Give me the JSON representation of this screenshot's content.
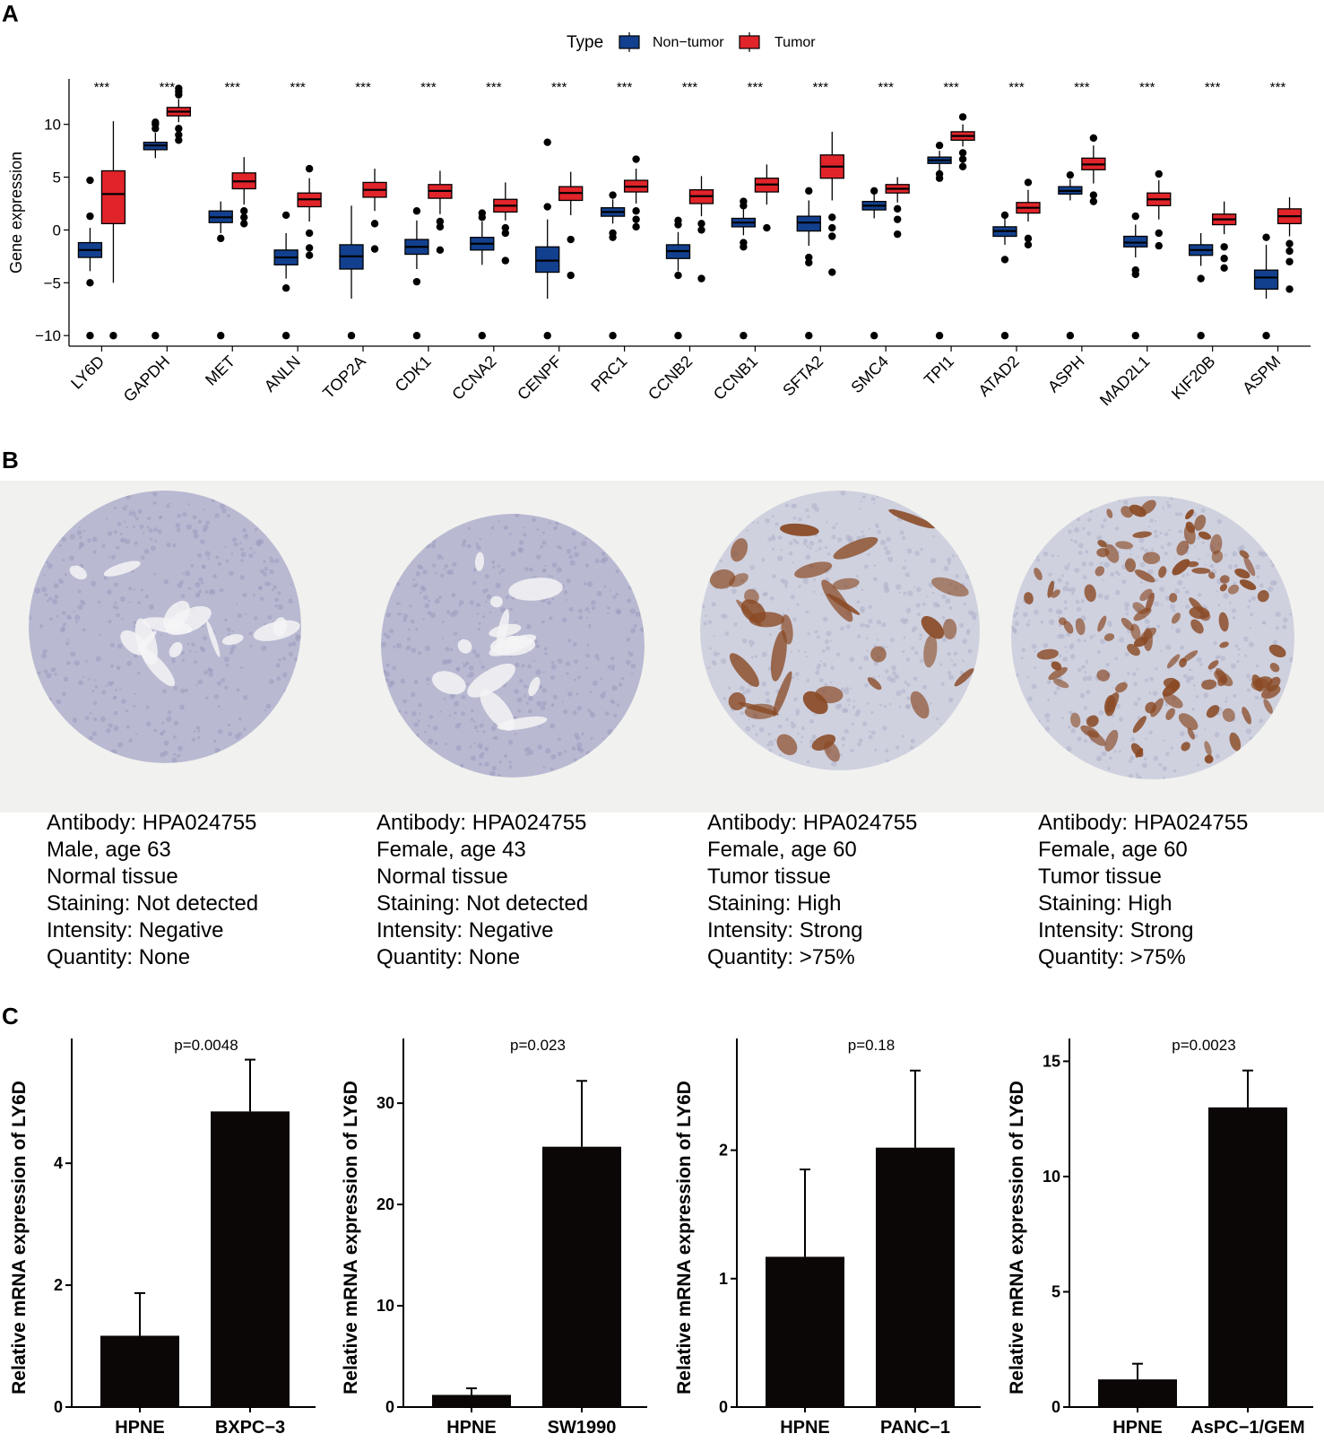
{
  "panels": {
    "a_label": "A",
    "b_label": "B",
    "c_label": "C"
  },
  "legend": {
    "title": "Type",
    "items": [
      {
        "label": "Non−tumor",
        "color": "#12408e"
      },
      {
        "label": "Tumor",
        "color": "#e0242a"
      }
    ]
  },
  "colors": {
    "non_tumor": "#12408e",
    "tumor": "#e0242a",
    "bar": "#0a0706",
    "stain_brown": "#8a4a25",
    "tissue_purple": "#b9b9d2"
  },
  "chart_data": [
    {
      "type": "boxplot",
      "title": "",
      "ylabel": "Gene expression",
      "xlabel": "",
      "ylim": [
        -11,
        14.3
      ],
      "yticks": [
        -10,
        -5,
        0,
        5,
        10
      ],
      "significance": "***",
      "genes": [
        {
          "gene": "LY6D",
          "non_tumor": {
            "q1": -2.6,
            "median": -1.9,
            "q3": -1.2,
            "lo": -3.9,
            "hi": 0.2,
            "outliers": [
              4.7,
              1.3,
              -5,
              -10
            ]
          },
          "tumor": {
            "q1": 0.6,
            "median": 3.4,
            "q3": 5.6,
            "lo": -5,
            "hi": 10.3,
            "outliers": [
              -10
            ]
          }
        },
        {
          "gene": "GAPDH",
          "non_tumor": {
            "q1": 7.6,
            "median": 8,
            "q3": 8.3,
            "lo": 6.8,
            "hi": 9.2,
            "outliers": [
              9.6,
              10,
              10.2,
              -10
            ]
          },
          "tumor": {
            "q1": 10.8,
            "median": 11.2,
            "q3": 11.6,
            "lo": 10.2,
            "hi": 12.4,
            "outliers": [
              12.8,
              13.1,
              13.4,
              9.6,
              9,
              8.5
            ]
          },
          "label_note": ""
        },
        {
          "gene": "MET",
          "non_tumor": {
            "q1": 0.7,
            "median": 1.2,
            "q3": 1.8,
            "lo": -0.3,
            "hi": 2.7,
            "outliers": [
              -0.8,
              -10
            ]
          },
          "tumor": {
            "q1": 3.9,
            "median": 4.6,
            "q3": 5.4,
            "lo": 2.4,
            "hi": 6.9,
            "outliers": [
              1.8,
              1.2,
              0.6
            ]
          }
        },
        {
          "gene": "ANLN",
          "non_tumor": {
            "q1": -3.3,
            "median": -2.6,
            "q3": -1.9,
            "lo": -4.6,
            "hi": -0.3,
            "outliers": [
              1.4,
              -5.5,
              -10
            ]
          },
          "tumor": {
            "q1": 2.2,
            "median": 2.9,
            "q3": 3.5,
            "lo": 0.8,
            "hi": 4.9,
            "outliers": [
              5.8,
              -0.3,
              -1.7,
              -2.4
            ]
          }
        },
        {
          "gene": "TOP2A",
          "non_tumor": {
            "q1": -3.7,
            "median": -2.5,
            "q3": -1.4,
            "lo": -6.5,
            "hi": 2.3,
            "outliers": [
              -10
            ]
          },
          "tumor": {
            "q1": 3.1,
            "median": 3.8,
            "q3": 4.5,
            "lo": 1.8,
            "hi": 5.8,
            "outliers": [
              0.6,
              -1.8
            ]
          }
        },
        {
          "gene": "CDK1",
          "non_tumor": {
            "q1": -2.3,
            "median": -1.6,
            "q3": -0.9,
            "lo": -3.7,
            "hi": 0.9,
            "outliers": [
              1.8,
              -4.9,
              -10
            ]
          },
          "tumor": {
            "q1": 3,
            "median": 3.7,
            "q3": 4.3,
            "lo": 1.5,
            "hi": 5.6,
            "outliers": [
              0.8,
              0.3,
              -1.9
            ]
          }
        },
        {
          "gene": "CCNA2",
          "non_tumor": {
            "q1": -1.9,
            "median": -1.3,
            "q3": -0.7,
            "lo": -3.3,
            "hi": 0.8,
            "outliers": [
              1.6,
              1.2,
              -10
            ]
          },
          "tumor": {
            "q1": 1.7,
            "median": 2.3,
            "q3": 2.9,
            "lo": 0.9,
            "hi": 4.5,
            "outliers": [
              0.2,
              -0.3,
              -2.9
            ]
          }
        },
        {
          "gene": "CENPF",
          "non_tumor": {
            "q1": -4,
            "median": -2.9,
            "q3": -1.6,
            "lo": -6.5,
            "hi": 1,
            "outliers": [
              8.3,
              2.2,
              -10
            ]
          },
          "tumor": {
            "q1": 2.8,
            "median": 3.5,
            "q3": 4.1,
            "lo": 1.4,
            "hi": 5.5,
            "outliers": [
              -0.9,
              -4.3
            ]
          }
        },
        {
          "gene": "PRC1",
          "non_tumor": {
            "q1": 1.3,
            "median": 1.7,
            "q3": 2.1,
            "lo": 0.6,
            "hi": 2.9,
            "outliers": [
              3.3,
              -0.3,
              -0.7,
              -10
            ]
          },
          "tumor": {
            "q1": 3.6,
            "median": 4.1,
            "q3": 4.7,
            "lo": 2.5,
            "hi": 5.8,
            "outliers": [
              6.7,
              1.8,
              1,
              0.3
            ]
          }
        },
        {
          "gene": "CCNB2",
          "non_tumor": {
            "q1": -2.7,
            "median": -2,
            "q3": -1.4,
            "lo": -3.9,
            "hi": -0.2,
            "outliers": [
              0.9,
              0.5,
              -4.3,
              -10
            ]
          },
          "tumor": {
            "q1": 2.5,
            "median": 3.2,
            "q3": 3.8,
            "lo": 1.3,
            "hi": 5.1,
            "outliers": [
              0.6,
              0,
              -4.6
            ]
          }
        },
        {
          "gene": "CCNB1",
          "non_tumor": {
            "q1": 0.3,
            "median": 0.7,
            "q3": 1.1,
            "lo": -0.5,
            "hi": 2,
            "outliers": [
              2.7,
              2.3,
              -1.2,
              -1.6,
              -10
            ]
          },
          "tumor": {
            "q1": 3.6,
            "median": 4.3,
            "q3": 4.9,
            "lo": 2.4,
            "hi": 6.2,
            "outliers": [
              0.2
            ]
          }
        },
        {
          "gene": "SFTA2",
          "non_tumor": {
            "q1": -0.1,
            "median": 0.7,
            "q3": 1.3,
            "lo": -1.5,
            "hi": 2.8,
            "outliers": [
              3.7,
              -2.6,
              -3.1,
              -10
            ]
          },
          "tumor": {
            "q1": 4.9,
            "median": 6,
            "q3": 7.1,
            "lo": 2.8,
            "hi": 9.3,
            "outliers": [
              1.2,
              0.2,
              -0.6,
              -4
            ]
          }
        },
        {
          "gene": "SMC4",
          "non_tumor": {
            "q1": 1.9,
            "median": 2.3,
            "q3": 2.7,
            "lo": 1.1,
            "hi": 3.4,
            "outliers": [
              3.7,
              -10
            ]
          },
          "tumor": {
            "q1": 3.5,
            "median": 3.9,
            "q3": 4.3,
            "lo": 2.6,
            "hi": 5,
            "outliers": [
              2,
              1,
              -0.4
            ]
          }
        },
        {
          "gene": "TPI1",
          "non_tumor": {
            "q1": 6.3,
            "median": 6.6,
            "q3": 6.9,
            "lo": 5.6,
            "hi": 7.5,
            "outliers": [
              8,
              5.3,
              4.9,
              -10
            ]
          },
          "tumor": {
            "q1": 8.5,
            "median": 8.9,
            "q3": 9.3,
            "lo": 7.9,
            "hi": 10,
            "outliers": [
              10.7,
              7.3,
              6.7,
              6
            ]
          }
        },
        {
          "gene": "ATAD2",
          "non_tumor": {
            "q1": -0.6,
            "median": -0.1,
            "q3": 0.3,
            "lo": -1.4,
            "hi": 1.1,
            "outliers": [
              1.4,
              -2.8,
              -10
            ]
          },
          "tumor": {
            "q1": 1.6,
            "median": 2.1,
            "q3": 2.6,
            "lo": 0.8,
            "hi": 3.8,
            "outliers": [
              4.5,
              -0.8,
              -1.4
            ]
          }
        },
        {
          "gene": "ASPH",
          "non_tumor": {
            "q1": 3.4,
            "median": 3.7,
            "q3": 4.1,
            "lo": 2.8,
            "hi": 4.8,
            "outliers": [
              5.2,
              -10
            ]
          },
          "tumor": {
            "q1": 5.7,
            "median": 6.2,
            "q3": 6.8,
            "lo": 4.4,
            "hi": 8,
            "outliers": [
              8.7,
              3.3,
              2.7
            ]
          }
        },
        {
          "gene": "MAD2L1",
          "non_tumor": {
            "q1": -1.6,
            "median": -1.2,
            "q3": -0.6,
            "lo": -2.6,
            "hi": 0.5,
            "outliers": [
              1.3,
              -3.8,
              -4.2,
              -10
            ]
          },
          "tumor": {
            "q1": 2.3,
            "median": 2.9,
            "q3": 3.5,
            "lo": 1,
            "hi": 4.7,
            "outliers": [
              5.3,
              -0.3,
              -1.5
            ]
          }
        },
        {
          "gene": "KIF20B",
          "non_tumor": {
            "q1": -2.4,
            "median": -1.9,
            "q3": -1.4,
            "lo": -3.4,
            "hi": -0.3,
            "outliers": [
              -4.6,
              -10
            ]
          },
          "tumor": {
            "q1": 0.5,
            "median": 1,
            "q3": 1.5,
            "lo": -0.4,
            "hi": 2.7,
            "outliers": [
              -1.6,
              -2.7,
              -3.6
            ]
          }
        },
        {
          "gene": "ASPM",
          "non_tumor": {
            "q1": -5.6,
            "median": -4.5,
            "q3": -3.8,
            "lo": -6.5,
            "hi": -1.4,
            "outliers": [
              -0.7,
              -10
            ]
          },
          "tumor": {
            "q1": 0.6,
            "median": 1.3,
            "q3": 2,
            "lo": -0.6,
            "hi": 3.1,
            "outliers": [
              -1.3,
              -2,
              -3,
              -5.6
            ]
          }
        }
      ]
    },
    {
      "type": "bar",
      "ylabel": "Relative mRNA expression of LY6D",
      "categories": [
        "HPNE",
        "BXPC−3"
      ],
      "values": [
        1.17,
        4.85
      ],
      "errors": [
        0.7,
        0.85
      ],
      "ylim": [
        0,
        5.9
      ],
      "yticks": [
        0,
        2,
        4
      ],
      "annotation": "p=0.0048"
    },
    {
      "type": "bar",
      "ylabel": "Relative mRNA expression of LY6D",
      "categories": [
        "HPNE",
        "SW1990"
      ],
      "values": [
        1.2,
        25.7
      ],
      "errors": [
        0.65,
        6.5
      ],
      "ylim": [
        0,
        35.5
      ],
      "yticks": [
        0,
        10,
        20,
        30
      ],
      "annotation": "p=0.023"
    },
    {
      "type": "bar",
      "ylabel": "Relative mRNA expression of LY6D",
      "categories": [
        "HPNE",
        "PANC−1"
      ],
      "values": [
        1.17,
        2.02
      ],
      "errors": [
        0.68,
        0.6
      ],
      "ylim": [
        0,
        2.8
      ],
      "yticks": [
        0,
        1,
        2
      ],
      "annotation": "p=0.18"
    },
    {
      "type": "bar",
      "ylabel": "Relative mRNA expression of LY6D",
      "categories": [
        "HPNE",
        "AsPC−1/GEM"
      ],
      "values": [
        1.2,
        13
      ],
      "errors": [
        0.68,
        1.6
      ],
      "ylim": [
        0,
        15.6
      ],
      "yticks": [
        0,
        5,
        10,
        15
      ],
      "annotation": "p=0.0023"
    }
  ],
  "ihc": [
    {
      "antibody": "Antibody: HPA024755",
      "sex_age": "Male, age 63",
      "tissue": "Normal tissue",
      "staining": "Staining: Not detected",
      "intensity": "Intensity: Negative",
      "quantity": "Quantity: None",
      "stained": false
    },
    {
      "antibody": "Antibody: HPA024755",
      "sex_age": "Female, age 43",
      "tissue": "Normal tissue",
      "staining": "Staining: Not detected",
      "intensity": "Intensity: Negative",
      "quantity": "Quantity: None",
      "stained": false
    },
    {
      "antibody": "Antibody: HPA024755",
      "sex_age": "Female, age 60",
      "tissue": "Tumor tissue",
      "staining": "Staining: High",
      "intensity": "Intensity: Strong",
      "quantity": "Quantity: >75%",
      "stained": true
    },
    {
      "antibody": "Antibody: HPA024755",
      "sex_age": "Female, age  60",
      "tissue": "Tumor tissue",
      "staining": "Staining: High",
      "intensity": "Intensity: Strong",
      "quantity": "Quantity: >75%",
      "stained": true
    }
  ]
}
